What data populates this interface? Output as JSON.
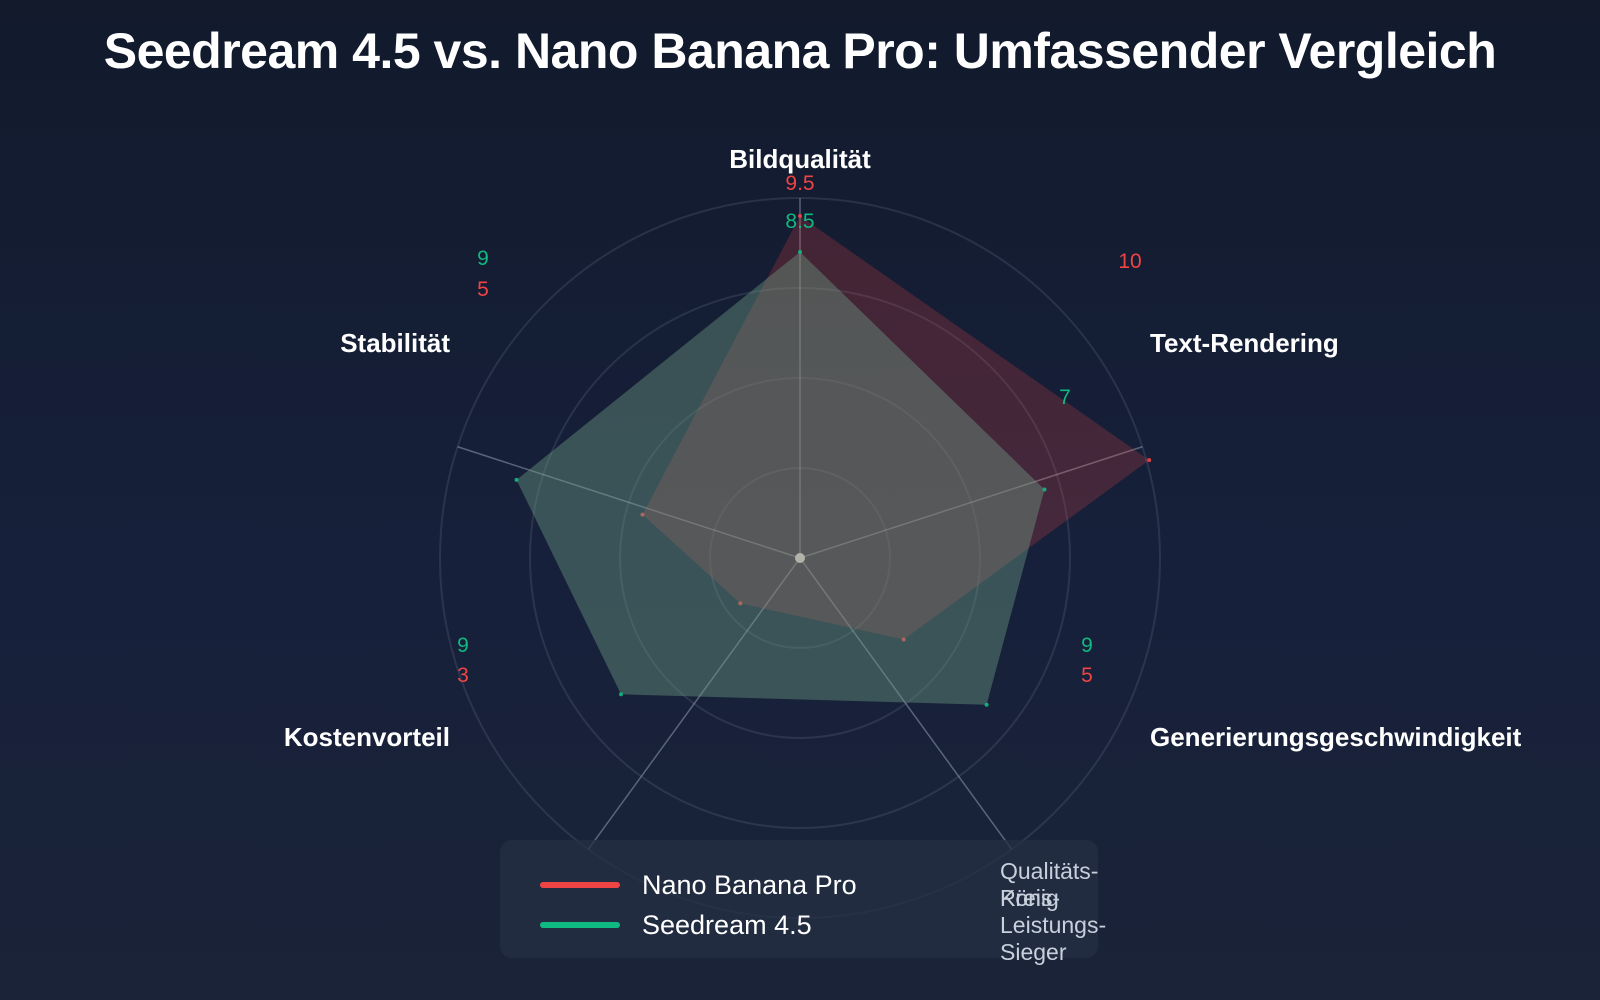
{
  "title": "Seedream 4.5 vs. Nano Banana Pro: Umfassender Vergleich",
  "chart_data": {
    "type": "radar",
    "axes": [
      "Bildqualität",
      "Text-Rendering",
      "Generierungsgeschwindigkeit",
      "Kostenvorteil",
      "Stabilität"
    ],
    "range": [
      0,
      10
    ],
    "series": [
      {
        "name": "Nano Banana Pro",
        "description": "Qualitäts-König",
        "color": "#ef4444",
        "values": [
          9.5,
          10,
          5,
          3,
          5
        ]
      },
      {
        "name": "Seedream 4.5",
        "description": "Preis-Leistungs-Sieger",
        "color": "#10b981",
        "values": [
          8.5,
          7,
          9,
          9,
          9
        ]
      }
    ]
  }
}
